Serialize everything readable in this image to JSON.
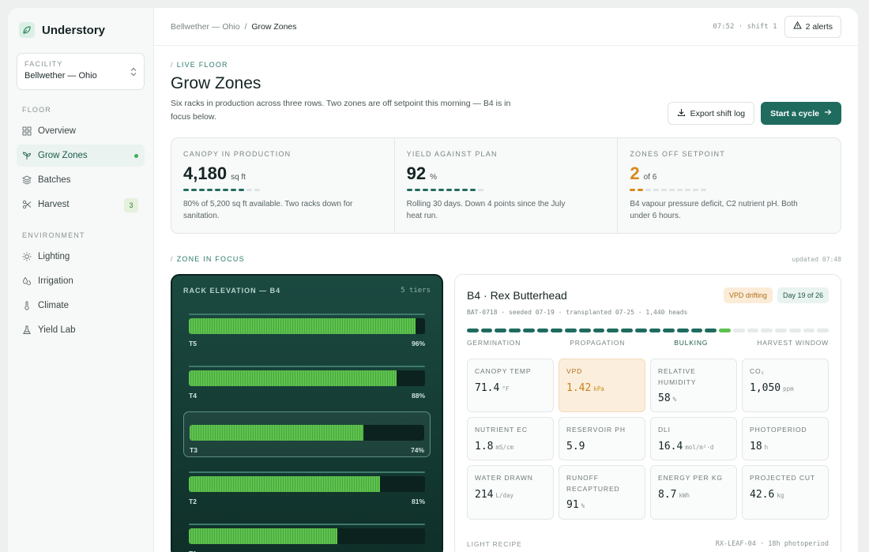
{
  "app": {
    "name": "Understory"
  },
  "facility": {
    "label": "FACILITY",
    "value": "Bellwether — Ohio"
  },
  "nav": {
    "floor_label": "FLOOR",
    "floor": [
      {
        "label": "Overview",
        "icon": "grid-icon"
      },
      {
        "label": "Grow Zones",
        "icon": "sprout-icon",
        "active": true
      },
      {
        "label": "Batches",
        "icon": "layers-icon"
      },
      {
        "label": "Harvest",
        "icon": "scissors-icon",
        "badge": "3"
      }
    ],
    "env_label": "ENVIRONMENT",
    "environment": [
      {
        "label": "Lighting",
        "icon": "sun-icon"
      },
      {
        "label": "Irrigation",
        "icon": "droplets-icon"
      },
      {
        "label": "Climate",
        "icon": "thermometer-icon"
      },
      {
        "label": "Yield Lab",
        "icon": "flask-icon"
      }
    ]
  },
  "topbar": {
    "crumb_parent": "Bellwether — Ohio",
    "crumb_sep": "/",
    "crumb_current": "Grow Zones",
    "clock": "07:52 · shift 1",
    "alerts": "2 alerts"
  },
  "page": {
    "kicker": "LIVE FLOOR",
    "title": "Grow Zones",
    "lede": "Six racks in production across three rows. Two zones are off setpoint this morning — B4 is in focus below.",
    "export_label": "Export shift log",
    "start_label": "Start a cycle"
  },
  "stats": [
    {
      "label": "CANOPY IN PRODUCTION",
      "value": "4,180",
      "unit": "sq ft",
      "bar_on": 8,
      "bar_total": 10,
      "bar_style": "on",
      "note": "80% of 5,200 sq ft available. Two racks down for sanitation."
    },
    {
      "label": "YIELD AGAINST PLAN",
      "value": "92",
      "unit": "%",
      "bar_on": 9,
      "bar_total": 10,
      "bar_style": "on",
      "note": "Rolling 30 days. Down 4 points since the July heat run."
    },
    {
      "label": "ZONES OFF SETPOINT",
      "value": "2",
      "unit": "of 6",
      "bar_on": 2,
      "bar_total": 10,
      "bar_style": "warn",
      "warn": true,
      "note": "B4 vapour pressure deficit, C2 nutrient pH. Both under 6 hours."
    }
  ],
  "focus": {
    "section": "ZONE IN FOCUS",
    "updated": "updated 07:48"
  },
  "rack": {
    "title": "RACK ELEVATION — B4",
    "tiers_label": "5 tiers",
    "tiers": [
      {
        "name": "T5",
        "pct_label": "96%",
        "fill": 0.96
      },
      {
        "name": "T4",
        "pct_label": "88%",
        "fill": 0.88
      },
      {
        "name": "T3",
        "pct_label": "74%",
        "fill": 0.74,
        "selected": true
      },
      {
        "name": "T2",
        "pct_label": "81%",
        "fill": 0.81
      },
      {
        "name": "T1",
        "pct_label": "",
        "fill": 0.63
      }
    ]
  },
  "zone": {
    "title": "B4 · Rex Butterhead",
    "meta": "BAT-0718 · seeded 07-19 · transplanted 07-25 · 1,440 heads",
    "tag_warn": "VPD drifting",
    "tag_day": "Day 19 of 26",
    "stage_done": 18,
    "stage_current": 1,
    "stage_total": 26,
    "stages": [
      "GERMINATION",
      "PROPAGATION",
      "BULKING",
      "HARVEST WINDOW"
    ],
    "stage_active_index": 2,
    "metrics_rows": [
      [
        {
          "label": "CANOPY TEMP",
          "value": "71.4",
          "unit": "°F"
        },
        {
          "label": "VPD",
          "value": "1.42",
          "unit": "kPa",
          "warn": true
        },
        {
          "label": "RELATIVE HUMIDITY",
          "value": "58",
          "unit": "%"
        },
        {
          "label": "CO₂",
          "value": "1,050",
          "unit": "ppm"
        }
      ],
      [
        {
          "label": "NUTRIENT EC",
          "value": "1.8",
          "unit": "mS/cm"
        },
        {
          "label": "RESERVOIR PH",
          "value": "5.9",
          "unit": ""
        },
        {
          "label": "DLI",
          "value": "16.4",
          "unit": "mol/m²·d"
        },
        {
          "label": "PHOTOPERIOD",
          "value": "18",
          "unit": "h"
        }
      ],
      [
        {
          "label": "WATER DRAWN",
          "value": "214",
          "unit": "L/day"
        },
        {
          "label": "RUNOFF RECAPTURED",
          "value": "91",
          "unit": "%"
        },
        {
          "label": "ENERGY PER KG",
          "value": "8.7",
          "unit": "kWh"
        },
        {
          "label": "PROJECTED CUT",
          "value": "42.6",
          "unit": "kg"
        }
      ]
    ],
    "recipe_label": "LIGHT RECIPE",
    "recipe_spec": "RX-LEAF-04 · 18h photoperiod"
  },
  "colors": {
    "accent": "#1f6b5e",
    "warn": "#d68a1c",
    "rack_bg": "#1b4a41",
    "growth": "#5ec24f"
  }
}
